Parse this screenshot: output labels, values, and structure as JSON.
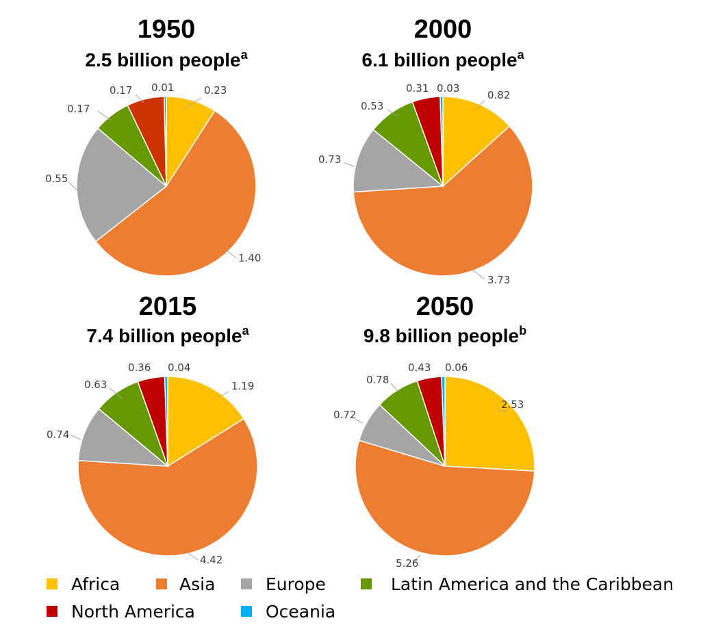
{
  "legend": [
    {
      "name": "Africa",
      "color": "#FFC000"
    },
    {
      "name": "Asia",
      "color": "#ED7D31"
    },
    {
      "name": "Europe",
      "color": "#A5A5A5"
    },
    {
      "name": "Latin America and the Caribbean",
      "color": "#669900"
    },
    {
      "name": "North America",
      "color": "#C00000"
    },
    {
      "name": "Oceania",
      "color": "#00B0F0"
    }
  ],
  "chart_data": [
    {
      "type": "pie",
      "title": "1950",
      "subtitle": "2.5 billion people",
      "subtitle_sup": "a",
      "categories": [
        "Africa",
        "Asia",
        "Europe",
        "Latin America and the Caribbean",
        "North America",
        "Oceania"
      ],
      "values": [
        0.23,
        1.4,
        0.55,
        0.17,
        0.17,
        0.01
      ],
      "labels": [
        "0.23",
        "1.40",
        "0.55",
        "0.17",
        "0.17",
        "0.01"
      ],
      "colors": [
        "#FFC000",
        "#ED7D31",
        "#A5A5A5",
        "#669900",
        "#CC3300",
        "#00B0F0"
      ]
    },
    {
      "type": "pie",
      "title": "2000",
      "subtitle": "6.1 billion people",
      "subtitle_sup": "a",
      "categories": [
        "Africa",
        "Asia",
        "Europe",
        "Latin America and the Caribbean",
        "North America",
        "Oceania"
      ],
      "values": [
        0.82,
        3.73,
        0.73,
        0.53,
        0.31,
        0.03
      ],
      "labels": [
        "0.82",
        "3.73",
        "0.73",
        "0.53",
        "0.31",
        "0.03"
      ],
      "colors": [
        "#FFC000",
        "#ED7D31",
        "#A5A5A5",
        "#669900",
        "#C00000",
        "#00B0F0"
      ]
    },
    {
      "type": "pie",
      "title": "2015",
      "subtitle": "7.4 billion people",
      "subtitle_sup": "a",
      "categories": [
        "Africa",
        "Asia",
        "Europe",
        "Latin America and the Caribbean",
        "North America",
        "Oceania"
      ],
      "values": [
        1.19,
        4.42,
        0.74,
        0.63,
        0.36,
        0.04
      ],
      "labels": [
        "1.19",
        "4.42",
        "0.74",
        "0.63",
        "0.36",
        "0.04"
      ],
      "colors": [
        "#FFC000",
        "#ED7D31",
        "#A5A5A5",
        "#669900",
        "#C00000",
        "#00B0F0"
      ]
    },
    {
      "type": "pie",
      "title": "2050",
      "subtitle": "9.8 billion people",
      "subtitle_sup": "b",
      "categories": [
        "Africa",
        "Asia",
        "Europe",
        "Latin America and the Caribbean",
        "North America",
        "Oceania"
      ],
      "values": [
        2.53,
        5.26,
        0.72,
        0.78,
        0.43,
        0.06
      ],
      "labels": [
        "2.53",
        "5.26",
        "0.72",
        "0.78",
        "0.43",
        "0.06"
      ],
      "colors": [
        "#FFC000",
        "#ED7D31",
        "#A5A5A5",
        "#669900",
        "#C00000",
        "#00B0F0"
      ]
    }
  ]
}
